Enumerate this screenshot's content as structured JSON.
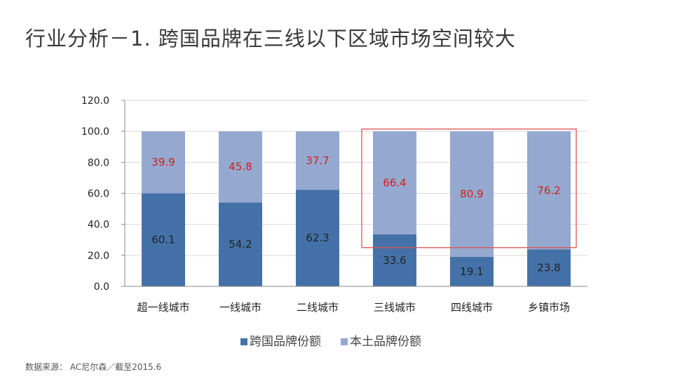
{
  "title": "行业分析－1. 跨国品牌在三线以下区域市场空间较大",
  "source": "数据来源：  AC尼尔森／截至2015.6",
  "colors": {
    "foreign": "#4472a8",
    "local": "#95a9d0",
    "highlight": "#e05050",
    "label_red": "#d81b1b",
    "label_dark": "#222222",
    "axis": "#888888",
    "grid": "#d9d9d9"
  },
  "chart_data": {
    "type": "bar",
    "stacked": true,
    "categories": [
      "超一线城市",
      "一线城市",
      "二线城市",
      "三线城市",
      "四线城市",
      "乡镇市场"
    ],
    "series": [
      {
        "name": "跨国品牌份额",
        "values": [
          60.1,
          54.2,
          62.3,
          33.6,
          19.1,
          23.8
        ]
      },
      {
        "name": "本土品牌份额",
        "values": [
          39.9,
          45.8,
          37.7,
          66.4,
          80.9,
          76.2
        ]
      }
    ],
    "ylim": [
      0,
      120
    ],
    "yticks": [
      "0.0",
      "20.0",
      "40.0",
      "60.0",
      "80.0",
      "100.0",
      "120.0"
    ],
    "grid": true,
    "legend": "bottom",
    "highlight_categories": [
      "三线城市",
      "四线城市",
      "乡镇市场"
    ]
  }
}
